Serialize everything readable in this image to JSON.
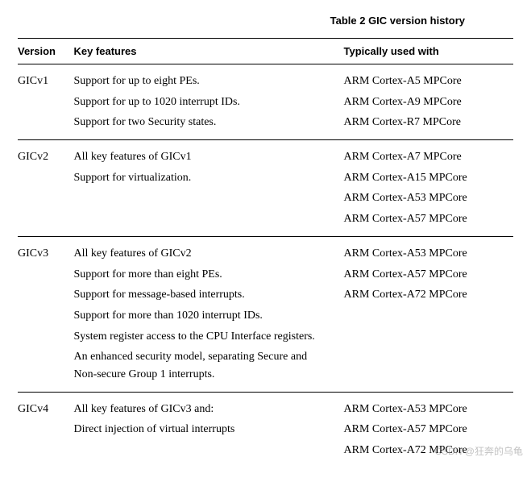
{
  "caption": "Table 2 GIC version history",
  "headers": {
    "version": "Version",
    "features": "Key features",
    "used": "Typically used with"
  },
  "groups": [
    {
      "version": "GICv1",
      "features": [
        "Support for up to eight PEs.",
        "Support for up to 1020 interrupt IDs.",
        "Support for two Security states."
      ],
      "used": [
        "ARM Cortex-A5 MPCore",
        "ARM Cortex-A9 MPCore",
        "ARM Cortex-R7 MPCore"
      ]
    },
    {
      "version": "GICv2",
      "features": [
        "All key features of GICv1",
        "Support for virtualization."
      ],
      "used": [
        "ARM Cortex-A7 MPCore",
        "ARM Cortex-A15 MPCore",
        "ARM Cortex-A53 MPCore",
        "ARM Cortex-A57 MPCore"
      ]
    },
    {
      "version": "GICv3",
      "features": [
        "All key features of GICv2",
        "Support for more than eight PEs.",
        "Support for message-based interrupts.",
        "Support for more than 1020 interrupt IDs.",
        "System register access to the CPU Interface registers.",
        "An enhanced security model, separating Secure and Non-secure Group 1 interrupts."
      ],
      "used": [
        "ARM Cortex-A53 MPCore",
        "ARM Cortex-A57 MPCore",
        "ARM Cortex-A72 MPCore"
      ]
    },
    {
      "version": "GICv4",
      "features": [
        "All key features of GICv3 and:",
        "Direct injection of virtual interrupts"
      ],
      "used": [
        "ARM Cortex-A53 MPCore",
        "ARM Cortex-A57 MPCore",
        "ARM Cortex-A72 MPCore"
      ]
    }
  ],
  "watermark": "CSDN @狂奔的乌龟"
}
